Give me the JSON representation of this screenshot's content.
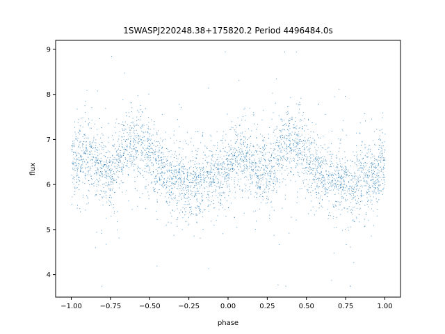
{
  "chart_data": {
    "type": "scatter",
    "title": "1SWASPJ220248.38+175820.2 Period 4496484.0s",
    "xlabel": "phase",
    "ylabel": "flux",
    "xlim": [
      -1.1,
      1.1
    ],
    "ylim": [
      3.5,
      9.2
    ],
    "x_ticks": [
      -1.0,
      -0.75,
      -0.5,
      -0.25,
      0.0,
      0.25,
      0.5,
      0.75,
      1.0
    ],
    "x_tick_labels": [
      "−1.00",
      "−0.75",
      "−0.50",
      "−0.25",
      "0.00",
      "0.25",
      "0.50",
      "0.75",
      "1.00"
    ],
    "y_ticks": [
      4,
      5,
      6,
      7,
      8,
      9
    ],
    "y_tick_labels": [
      "4",
      "5",
      "6",
      "7",
      "8",
      "9"
    ],
    "grid": false,
    "legend": "none",
    "marker_color": "#1f77b4",
    "series": [
      {
        "x_range": [
          -1.0,
          1.0
        ],
        "symmetry": "phase-folded, pattern repeats with period 1.0",
        "mean_flux_profile": [
          {
            "phase": 0.0,
            "flux": 6.5
          },
          {
            "phase": 0.1,
            "flux": 6.6
          },
          {
            "phase": 0.2,
            "flux": 6.3
          },
          {
            "phase": 0.25,
            "flux": 6.2
          },
          {
            "phase": 0.35,
            "flux": 6.9
          },
          {
            "phase": 0.45,
            "flux": 6.9
          },
          {
            "phase": 0.55,
            "flux": 6.4
          },
          {
            "phase": 0.65,
            "flux": 6.1
          },
          {
            "phase": 0.75,
            "flux": 6.0
          },
          {
            "phase": 0.85,
            "flux": 6.1
          },
          {
            "phase": 0.95,
            "flux": 6.2
          },
          {
            "phase": 1.0,
            "flux": 6.5
          }
        ]
      }
    ]
  }
}
